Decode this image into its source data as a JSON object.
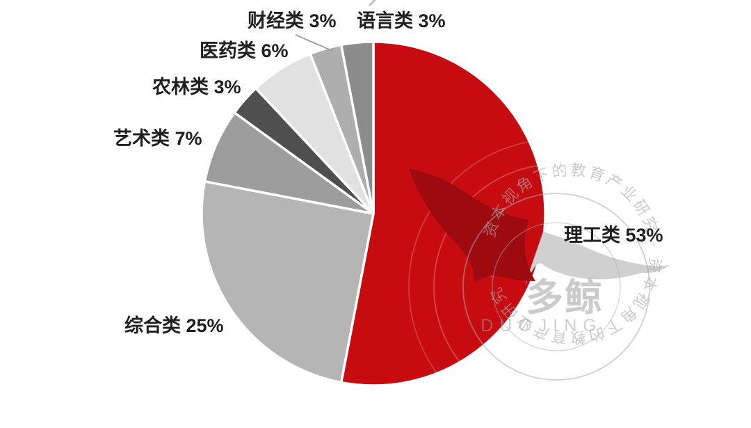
{
  "page": {
    "background": "#ffffff"
  },
  "chart_data": {
    "type": "pie",
    "title": "",
    "unit": "%",
    "slices": [
      {
        "label": "理工类",
        "value": 53,
        "color": "#c60c10"
      },
      {
        "label": "综合类",
        "value": 25,
        "color": "#b5b5b5"
      },
      {
        "label": "艺术类",
        "value": 7,
        "color": "#9d9d9d"
      },
      {
        "label": "农林类",
        "value": 3,
        "color": "#4f4f4f"
      },
      {
        "label": "医药类",
        "value": 6,
        "color": "#e1e1e1"
      },
      {
        "label": "财经类",
        "value": 3,
        "color": "#aeaeae"
      },
      {
        "label": "语言类",
        "value": 3,
        "color": "#8c8c8c"
      }
    ],
    "layout": {
      "start_angle_deg": 0,
      "clockwise": true,
      "center": [
        537,
        307
      ],
      "radius": 247,
      "separator_color": "#ffffff",
      "separator_width": 3.5,
      "label_color": "#1f1f1f",
      "legend": "none",
      "labels_outside": true
    }
  },
  "watermark": {
    "brand": "多鲸",
    "brand_latin": "DUOJING",
    "ring_text": "资本视角下的教育产业研究",
    "ring_separator": "·",
    "icon": "whale-tail-icon",
    "stamp_color": "#d4d4d4"
  }
}
